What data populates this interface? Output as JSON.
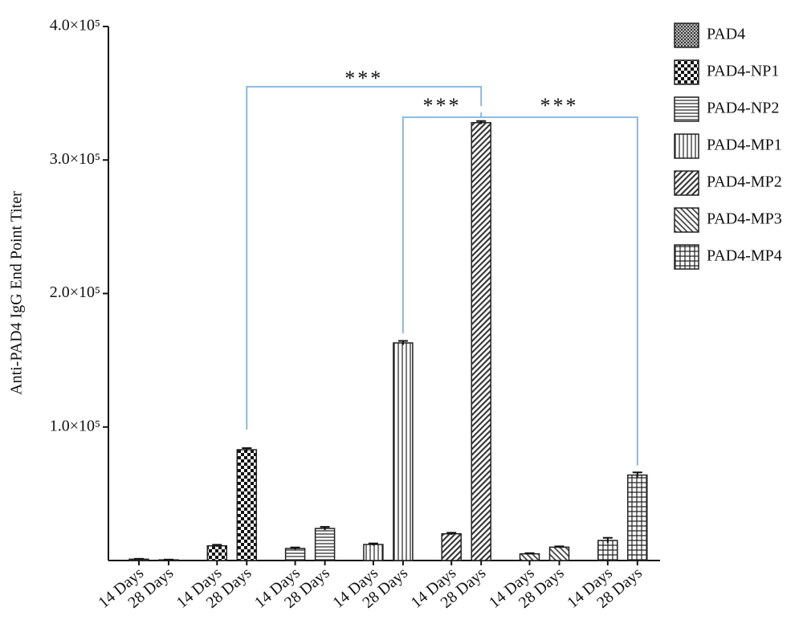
{
  "chart_data": {
    "type": "bar",
    "y_label": "Anti-PAD4 IgG End Point Titer",
    "categories": [
      "14 Days",
      "28 Days"
    ],
    "series": [
      {
        "name": "PAD4",
        "pattern": "dots",
        "color": "#222222",
        "values": [
          1000,
          500
        ],
        "errors": [
          300,
          200
        ]
      },
      {
        "name": "PAD4-NP1",
        "pattern": "checker",
        "color": "#222222",
        "values": [
          11000,
          83000
        ],
        "errors": [
          800,
          1200
        ]
      },
      {
        "name": "PAD4-NP2",
        "pattern": "horizontal",
        "color": "#222222",
        "values": [
          9000,
          24000
        ],
        "errors": [
          800,
          1200
        ]
      },
      {
        "name": "PAD4-MP1",
        "pattern": "vertical",
        "color": "#222222",
        "values": [
          12000,
          163000
        ],
        "errors": [
          800,
          1500
        ]
      },
      {
        "name": "PAD4-MP2",
        "pattern": "diagonal-right",
        "color": "#222222",
        "values": [
          20000,
          328000
        ],
        "errors": [
          800,
          1200
        ]
      },
      {
        "name": "PAD4-MP3",
        "pattern": "diagonal-left",
        "color": "#222222",
        "values": [
          5000,
          10000
        ],
        "errors": [
          500,
          600
        ]
      },
      {
        "name": "PAD4-MP4",
        "pattern": "grid",
        "color": "#222222",
        "values": [
          15000,
          64000
        ],
        "errors": [
          2000,
          2000
        ]
      }
    ],
    "ylim": [
      0,
      400000
    ],
    "yticks": [
      {
        "value": 100000,
        "label": "1.0×10⁵"
      },
      {
        "value": 200000,
        "label": "2.0×10⁵"
      },
      {
        "value": 300000,
        "label": "3.0×10⁵"
      },
      {
        "value": 400000,
        "label": "4.0×10⁵"
      }
    ],
    "annotations": [
      "***",
      "***",
      "***"
    ],
    "annotation_color": "#7fb2e0"
  }
}
